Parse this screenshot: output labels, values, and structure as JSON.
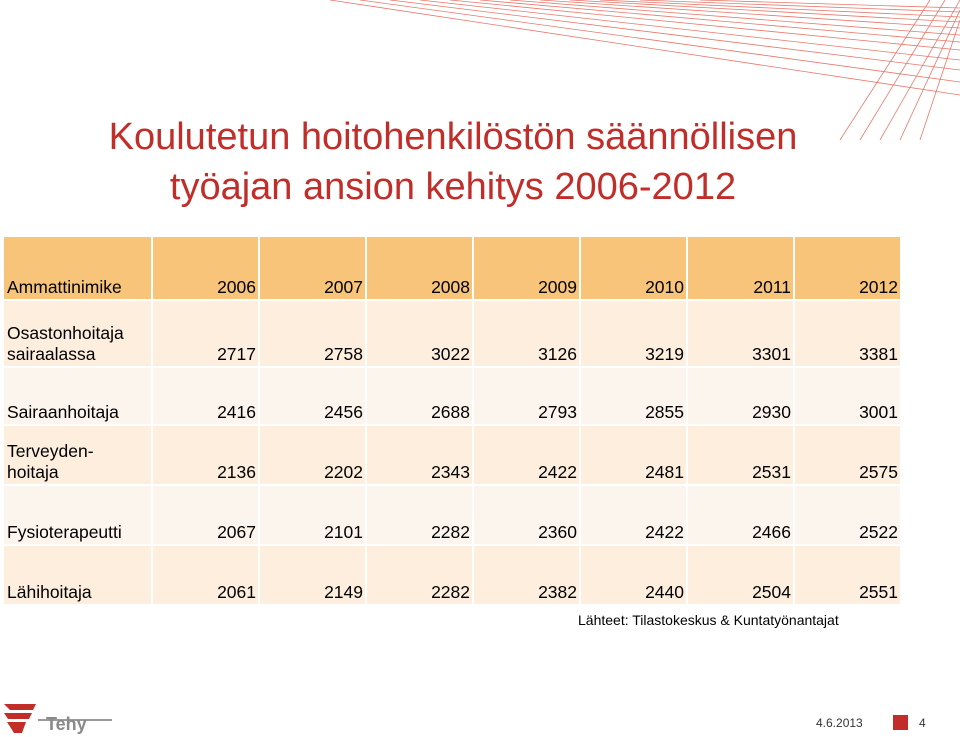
{
  "slide": {
    "title_line1": "Koulutetun hoitohenkilöstön säännöllisen",
    "title_line2": "työajan ansion kehitys 2006-2012",
    "source": "Lähteet: Tilastokeskus & Kuntatyönantajat",
    "date": "4.6.2013",
    "page": "4",
    "accent_color": "#c12e2a",
    "logo_text": "Tehy"
  },
  "table": {
    "header": [
      "Ammattinimike",
      "2006",
      "2007",
      "2008",
      "2009",
      "2010",
      "2011",
      "2012"
    ],
    "rows": [
      {
        "name_line1": "Osastonhoitaja",
        "name_line2": "sairaalassa",
        "values": [
          "2717",
          "2758",
          "3022",
          "3126",
          "3219",
          "3301",
          "3381"
        ]
      },
      {
        "name_line1": "",
        "name_line2": "Sairaanhoitaja",
        "values": [
          "2416",
          "2456",
          "2688",
          "2793",
          "2855",
          "2930",
          "3001"
        ]
      },
      {
        "name_line1": "Terveyden-",
        "name_line2": "hoitaja",
        "values": [
          "2136",
          "2202",
          "2343",
          "2422",
          "2481",
          "2531",
          "2575"
        ]
      },
      {
        "name_line1": "",
        "name_line2": "Fysioterapeutti",
        "values": [
          "2067",
          "2101",
          "2282",
          "2360",
          "2422",
          "2466",
          "2522"
        ]
      },
      {
        "name_line1": "",
        "name_line2": "Lähihoitaja",
        "values": [
          "2061",
          "2149",
          "2282",
          "2382",
          "2440",
          "2504",
          "2551"
        ]
      }
    ]
  }
}
